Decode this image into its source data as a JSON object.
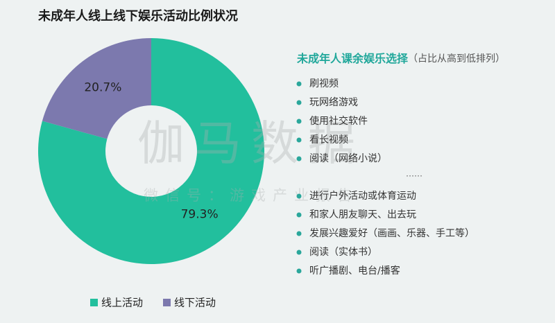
{
  "chart_data": {
    "type": "pie",
    "title": "未成年人线上线下娱乐活动比例状况",
    "categories": [
      "线上活动",
      "线下活动"
    ],
    "values": [
      79.3,
      20.7
    ],
    "value_labels": [
      "79.3%",
      "20.7%"
    ],
    "colors": [
      "#22bf9d",
      "#7c79ae"
    ],
    "donut": true
  },
  "panel": {
    "title": "未成年人课余娱乐选择",
    "subtitle": "（占比从高到低排列）",
    "items": [
      "刷视频",
      "玩网络游戏",
      "使用社交软件",
      "看长视频",
      "阅读（网络小说）",
      "……",
      "进行户外活动或体育运动",
      "和家人朋友聊天、出去玩",
      "发展兴趣爱好（画画、乐器、手工等）",
      "阅读（实体书）",
      "听广播剧、电台/播客"
    ]
  },
  "watermark": {
    "brand": "伽马数据",
    "account": "微信号：游戏产业报告"
  }
}
